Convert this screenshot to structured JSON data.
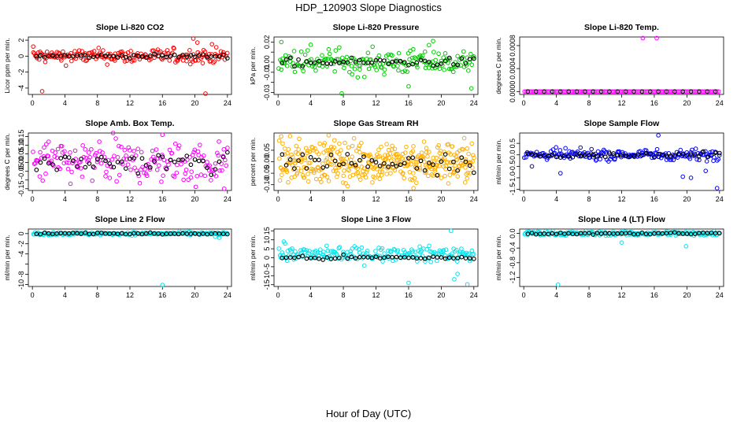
{
  "figure": {
    "title": "HDP_120903  Slope Diagnostics",
    "xlabel": "Hour of Day (UTC)"
  },
  "chart_data": [
    {
      "type": "scatter",
      "title": "Slope Li-820 CO2",
      "ylabel": "Licor ppm per min.",
      "color": "#ff0000",
      "ylim": [
        -4.8,
        2.4
      ],
      "yticks": [
        -4,
        -2,
        0,
        2
      ],
      "xticks": [
        0,
        4,
        8,
        12,
        16,
        20,
        24
      ],
      "xlim": [
        -0.5,
        24.5
      ],
      "spread": 0.45,
      "centerSpread": 0.12,
      "outliers": [
        [
          1.2,
          -4.4
        ],
        [
          0.1,
          1.2
        ],
        [
          19.8,
          2.2
        ],
        [
          21.3,
          -4.7
        ],
        [
          20.3,
          1.7
        ],
        [
          22.1,
          1.5
        ]
      ],
      "series": [
        {
          "name": "individual",
          "color": "#ff0000"
        },
        {
          "name": "hourly",
          "color": "#000000"
        }
      ]
    },
    {
      "type": "scatter",
      "title": "Slope Li-820 Pressure",
      "ylabel": "kPa per min.",
      "color": "#00cc00",
      "ylim": [
        -0.032,
        0.025
      ],
      "yticks": [
        -0.03,
        -0.02,
        -0.01,
        0.0,
        0.01,
        0.02
      ],
      "yticklabels": [
        "-0.03",
        "",
        "-0.01",
        "0.00",
        "",
        "0.02"
      ],
      "xticks": [
        0,
        4,
        8,
        12,
        16,
        20,
        24
      ],
      "xlim": [
        -0.5,
        24.5
      ],
      "spread": 0.006,
      "centerSpread": 0.002,
      "outliers": [
        [
          0.4,
          0.02
        ],
        [
          7.8,
          -0.031
        ],
        [
          16.0,
          -0.024
        ],
        [
          19.0,
          0.021
        ],
        [
          23.7,
          -0.026
        ],
        [
          18.5,
          0.017
        ]
      ],
      "series": [
        {
          "name": "individual",
          "color": "#00cc00"
        },
        {
          "name": "hourly",
          "color": "#000000"
        }
      ]
    },
    {
      "type": "scatter",
      "title": "Slope Li-820 Temp.",
      "ylabel": "degrees C per min.",
      "color": "#ff00ff",
      "ylim": [
        -5e-05,
        0.00095
      ],
      "yticks": [
        0.0,
        0.0004,
        0.0008
      ],
      "yticklabels": [
        "0.0000",
        "0.0004",
        "0.0008"
      ],
      "xticks": [
        0,
        4,
        8,
        12,
        16,
        20,
        24
      ],
      "xlim": [
        -0.5,
        24.5
      ],
      "flat": true,
      "outliers": [
        [
          14.6,
          0.00093
        ],
        [
          16.3,
          0.00093
        ]
      ],
      "series": [
        {
          "name": "individual",
          "color": "#ff00ff"
        },
        {
          "name": "hourly",
          "color": "#000000"
        }
      ]
    },
    {
      "type": "scatter",
      "title": "Slope Amb. Box Temp.",
      "ylabel": "degrees C per min.",
      "color": "#ff00ff",
      "ylim": [
        -0.16,
        0.17
      ],
      "yticks": [
        -0.15,
        -0.1,
        -0.05,
        0.0,
        0.05,
        0.1,
        0.15
      ],
      "yticklabels": [
        "-0.15",
        "",
        "-0.05",
        "0.00",
        "0.05",
        "0.10",
        "0.15"
      ],
      "xticks": [
        0,
        4,
        8,
        12,
        16,
        20,
        24
      ],
      "xlim": [
        -0.5,
        24.5
      ],
      "spread": 0.06,
      "centerSpread": 0.03,
      "outliers": [
        [
          16.0,
          0.16
        ],
        [
          23.6,
          -0.15
        ],
        [
          2.0,
          0.12
        ]
      ],
      "series": [
        {
          "name": "individual",
          "color": "#ff00ff"
        },
        {
          "name": "hourly",
          "color": "#000000"
        }
      ]
    },
    {
      "type": "scatter",
      "title": "Slope Gas Stream RH",
      "ylabel": "percent per min.",
      "color": "#ffb000",
      "ylim": [
        -0.125,
        0.125
      ],
      "yticks": [
        -0.1,
        -0.05,
        0.0,
        0.05
      ],
      "yticklabels": [
        "-0.10",
        "-0.05",
        "0.00",
        "0.05"
      ],
      "xticks": [
        0,
        4,
        8,
        12,
        16,
        20,
        24
      ],
      "xlim": [
        -0.5,
        24.5
      ],
      "spread": 0.045,
      "centerSpread": 0.025,
      "dense": 4,
      "outliers": [
        [
          6.2,
          0.115
        ],
        [
          16.6,
          -0.115
        ]
      ],
      "series": [
        {
          "name": "individual",
          "color": "#ffb000"
        },
        {
          "name": "hourly",
          "color": "#000000"
        }
      ]
    },
    {
      "type": "scatter",
      "title": "Slope Sample Flow",
      "ylabel": "ml/min per min.",
      "color": "#0000ff",
      "ylim": [
        -1.55,
        0.95
      ],
      "yticks": [
        -1.5,
        -1.0,
        -0.5,
        0.0,
        0.5
      ],
      "yticklabels": [
        "-1.5",
        "-1.0",
        "-0.5",
        "0.0",
        "0.5"
      ],
      "xticks": [
        0,
        4,
        8,
        12,
        16,
        20,
        24
      ],
      "xlim": [
        -0.5,
        24.5
      ],
      "spread": 0.12,
      "centerSpread": 0.05,
      "outliers": [
        [
          4.5,
          -0.8
        ],
        [
          16.5,
          0.85
        ],
        [
          19.5,
          -0.95
        ],
        [
          20.5,
          -1.0
        ],
        [
          23.7,
          -1.45
        ],
        [
          22.3,
          -0.7
        ],
        [
          1.0,
          -0.5
        ]
      ],
      "series": [
        {
          "name": "individual",
          "color": "#0000ff"
        },
        {
          "name": "hourly",
          "color": "#000000"
        }
      ]
    },
    {
      "type": "scatter",
      "title": "Slope Line 2 Flow",
      "ylabel": "ml/min per min.",
      "color": "#00e5ee",
      "ylim": [
        -10.4,
        0.9
      ],
      "yticks": [
        -10,
        -8,
        -6,
        -4,
        -2,
        0
      ],
      "yticklabels": [
        "-10",
        "-8",
        "",
        "-4",
        "-2",
        "0"
      ],
      "xticks": [
        0,
        4,
        8,
        12,
        16,
        20,
        24
      ],
      "xlim": [
        -0.5,
        24.5
      ],
      "spread": 0.15,
      "centerSpread": 0.08,
      "outliers": [
        [
          16.0,
          -10.1
        ],
        [
          22.5,
          -0.6
        ],
        [
          23.0,
          -0.8
        ]
      ],
      "series": [
        {
          "name": "individual",
          "color": "#00e5ee"
        },
        {
          "name": "hourly",
          "color": "#000000"
        }
      ]
    },
    {
      "type": "scatter",
      "title": "Slope Line 3 Flow",
      "ylabel": "ml/min per min.",
      "color": "#00e5ee",
      "ylim": [
        -16,
        16
      ],
      "yticks": [
        -15,
        -10,
        -5,
        0,
        5,
        10,
        15
      ],
      "yticklabels": [
        "-15",
        "-10",
        "-5",
        "0",
        "5",
        "10",
        "15"
      ],
      "xticks": [
        0,
        4,
        8,
        12,
        16,
        20,
        24
      ],
      "xlim": [
        -0.5,
        24.5
      ],
      "spread": 2.0,
      "centerSpread": 0.6,
      "offset": 2.0,
      "outliers": [
        [
          16.0,
          -14.0
        ],
        [
          21.2,
          15.0
        ],
        [
          23.2,
          -14.8
        ],
        [
          22.0,
          -9.0
        ],
        [
          21.6,
          -12.0
        ],
        [
          0.7,
          9.0
        ]
      ],
      "series": [
        {
          "name": "individual",
          "color": "#00e5ee"
        },
        {
          "name": "hourly",
          "color": "#000000"
        }
      ]
    },
    {
      "type": "scatter",
      "title": "Slope Line 4 (LT) Flow",
      "ylabel": "ml/min per min.",
      "color": "#00e5ee",
      "ylim": [
        -1.45,
        0.12
      ],
      "yticks": [
        -1.2,
        -0.8,
        -0.4,
        0.0
      ],
      "yticklabels": [
        "-1.2",
        "-0.8",
        "-0.4",
        "0.0"
      ],
      "xticks": [
        0,
        4,
        8,
        12,
        16,
        20,
        24
      ],
      "xlim": [
        -0.5,
        24.5
      ],
      "spread": 0.03,
      "centerSpread": 0.015,
      "outliers": [
        [
          4.2,
          -1.4
        ],
        [
          12.0,
          -0.25
        ],
        [
          19.9,
          -0.35
        ]
      ],
      "series": [
        {
          "name": "individual",
          "color": "#00e5ee"
        },
        {
          "name": "hourly",
          "color": "#000000"
        }
      ]
    }
  ]
}
